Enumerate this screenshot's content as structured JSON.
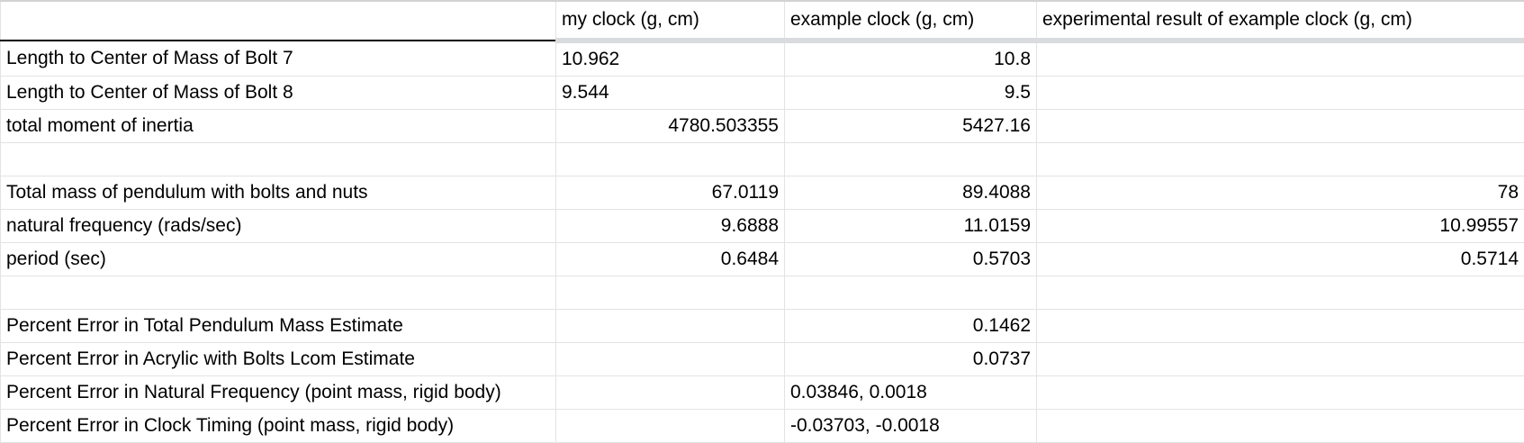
{
  "sheet": {
    "columns": [
      "",
      "my clock (g, cm)",
      "example clock (g, cm)",
      "experimental result of example clock (g, cm)"
    ],
    "rows": [
      {
        "label": "Length to Center of Mass of Bolt 7",
        "my": "10.962",
        "example": "10.8",
        "experimental": ""
      },
      {
        "label": "Length to Center of Mass of Bolt 8",
        "my": "9.544",
        "example": "9.5",
        "experimental": ""
      },
      {
        "label": "total moment of inertia",
        "my": "4780.503355",
        "example": "5427.16",
        "experimental": ""
      },
      {
        "label": "",
        "my": "",
        "example": "",
        "experimental": ""
      },
      {
        "label": "Total mass of pendulum with bolts and nuts",
        "my": "67.0119",
        "example": "89.4088",
        "experimental": "78"
      },
      {
        "label": "natural frequency (rads/sec)",
        "my": "9.6888",
        "example": "11.0159",
        "experimental": "10.99557"
      },
      {
        "label": "period (sec)",
        "my": "0.6484",
        "example": "0.5703",
        "experimental": "0.5714"
      },
      {
        "label": "",
        "my": "",
        "example": "",
        "experimental": ""
      },
      {
        "label": "Percent Error in Total Pendulum Mass Estimate",
        "my": "",
        "example": "0.1462",
        "experimental": ""
      },
      {
        "label": "Percent Error in Acrylic with Bolts Lcom Estimate",
        "my": "",
        "example": "0.0737",
        "experimental": ""
      },
      {
        "label": "Percent Error in Natural Frequency (point mass, rigid body)",
        "my": "",
        "example": "0.03846, 0.0018",
        "experimental": ""
      },
      {
        "label": "Percent Error in Clock Timing (point mass, rigid body)",
        "my": "",
        "example": "-0.03703, -0.0018",
        "experimental": ""
      }
    ]
  }
}
